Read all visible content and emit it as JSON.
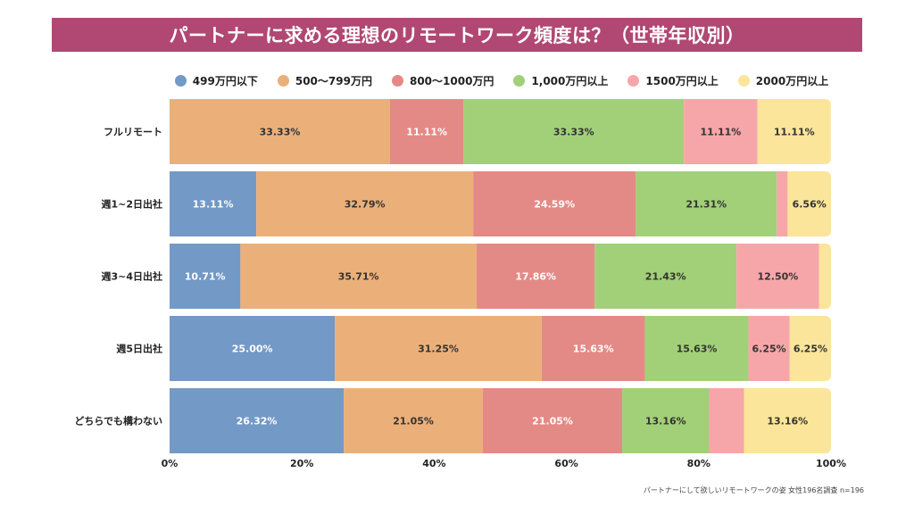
{
  "title": "パートナーに求める理想のリモートワーク頻度は？（世帯年収別）",
  "footnote": "パートナーにして欲しいリモートワークの姿 女性196名調査 n=196",
  "chart_data": {
    "type": "bar",
    "orientation": "horizontal",
    "stacked": true,
    "xlim": [
      0,
      100
    ],
    "x_ticks": [
      "0%",
      "20%",
      "40%",
      "60%",
      "80%",
      "100%"
    ],
    "categories": [
      "フルリモート",
      "週1~2日出社",
      "週3~4日出社",
      "週5日出社",
      "どちらでも構わない"
    ],
    "series": [
      {
        "name": "499万円以下",
        "color": "#7399c6",
        "values": [
          0,
          13.11,
          10.71,
          25.0,
          26.32
        ],
        "labels": [
          "",
          "13.11%",
          "10.71%",
          "25.00%",
          "26.32%"
        ]
      },
      {
        "name": "500〜799万円",
        "color": "#ebb07a",
        "values": [
          33.33,
          32.79,
          35.71,
          31.25,
          21.05
        ],
        "labels": [
          "33.33%",
          "32.79%",
          "35.71%",
          "31.25%",
          "21.05%"
        ]
      },
      {
        "name": "800〜1000万円",
        "color": "#e48a86",
        "values": [
          11.11,
          24.59,
          17.86,
          15.63,
          21.05
        ],
        "labels": [
          "11.11%",
          "24.59%",
          "17.86%",
          "15.63%",
          "21.05%"
        ]
      },
      {
        "name": "1,000万円以上",
        "color": "#a2d078",
        "values": [
          33.33,
          21.31,
          21.43,
          15.63,
          13.16
        ],
        "labels": [
          "33.33%",
          "21.31%",
          "21.43%",
          "15.63%",
          "13.16%"
        ]
      },
      {
        "name": "1500万円以上",
        "color": "#f6a6a9",
        "values": [
          11.11,
          1.64,
          12.5,
          6.25,
          5.26
        ],
        "labels": [
          "11.11%",
          "",
          "12.50%",
          "6.25%",
          ""
        ]
      },
      {
        "name": "2000万円以上",
        "color": "#fbe59a",
        "values": [
          11.11,
          6.56,
          1.79,
          6.25,
          13.16
        ],
        "labels": [
          "11.11%",
          "6.56%",
          "",
          "6.25%",
          "13.16%"
        ]
      }
    ],
    "label_colors": {
      "dark": "#333333",
      "light": "#ffffff"
    },
    "grid": false,
    "legend_position": "top"
  }
}
